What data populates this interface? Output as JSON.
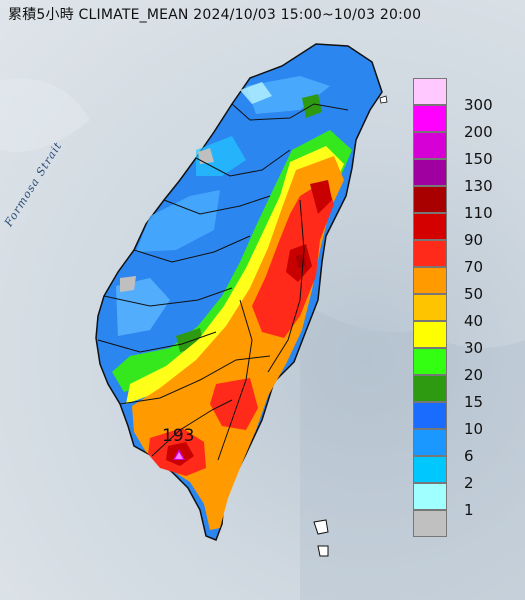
{
  "title": "累積5小時 CLIMATE_MEAN 2024/10/03 15:00~10/03 20:00",
  "strait_label": "Formosa Strait",
  "station": {
    "value": "193",
    "marker_color": "#d400d4"
  },
  "legend": {
    "items": [
      {
        "label": "300",
        "color": "#ffc8ff"
      },
      {
        "label": "200",
        "color": "#ff00ff"
      },
      {
        "label": "150",
        "color": "#d600d6"
      },
      {
        "label": "130",
        "color": "#a0009f"
      },
      {
        "label": "110",
        "color": "#a80000"
      },
      {
        "label": "90",
        "color": "#d40000"
      },
      {
        "label": "70",
        "color": "#ff2a1a"
      },
      {
        "label": "50",
        "color": "#ff9a00"
      },
      {
        "label": "40",
        "color": "#ffc400"
      },
      {
        "label": "30",
        "color": "#ffff00"
      },
      {
        "label": "20",
        "color": "#33ff12"
      },
      {
        "label": "15",
        "color": "#2d9a12"
      },
      {
        "label": "10",
        "color": "#1a6cff"
      },
      {
        "label": "6",
        "color": "#1a98ff"
      },
      {
        "label": "2",
        "color": "#00c8ff"
      },
      {
        "label": "1",
        "color": "#a0ffff"
      },
      {
        "label": "",
        "color": "#c0c0c0"
      }
    ]
  }
}
